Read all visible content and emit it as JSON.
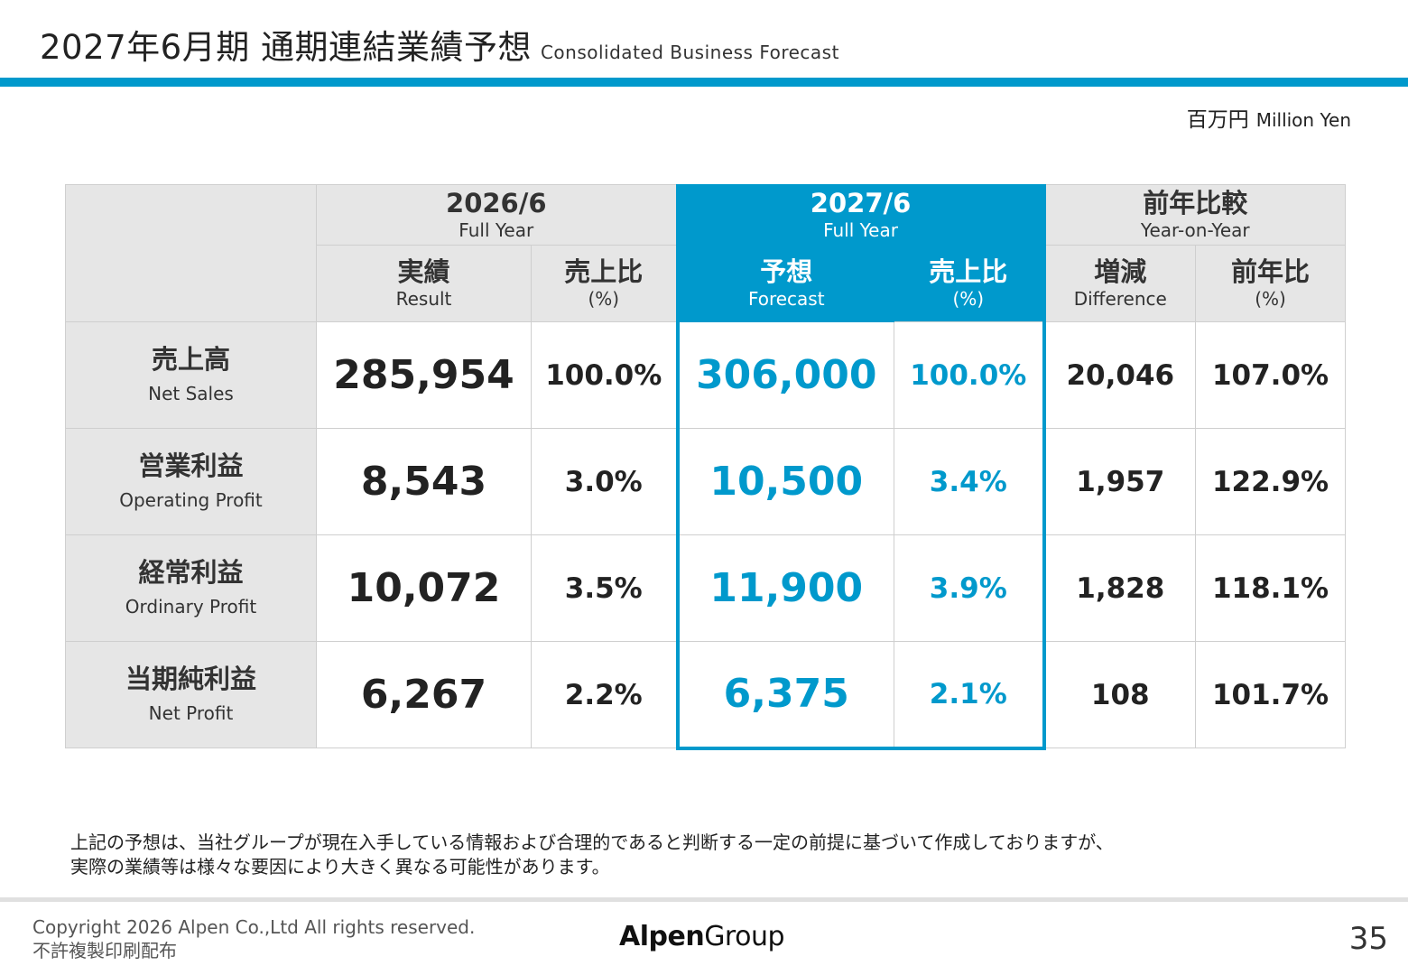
{
  "title": {
    "main": "2027年6月期 通期連結業績予想",
    "sub": "Consolidated Business Forecast"
  },
  "unit": {
    "jp": "百万円",
    "en": "Million Yen"
  },
  "table": {
    "groups": [
      {
        "title": "2026/6",
        "sub": "Full Year"
      },
      {
        "title": "2027/6",
        "sub": "Full Year"
      },
      {
        "title": "前年比較",
        "sub": "Year-on-Year"
      }
    ],
    "columns": [
      {
        "title": "実績",
        "sub": "Result"
      },
      {
        "title": "売上比",
        "sub": "(%)"
      },
      {
        "title": "予想",
        "sub": "Forecast"
      },
      {
        "title": "売上比",
        "sub": "(%)"
      },
      {
        "title": "増減",
        "sub": "Difference"
      },
      {
        "title": "前年比",
        "sub": "(%)"
      }
    ],
    "rows": [
      {
        "jp": "売上高",
        "en": "Net Sales",
        "values": [
          "285,954",
          "100.0%",
          "306,000",
          "100.0%",
          "20,046",
          "107.0%"
        ]
      },
      {
        "jp": "営業利益",
        "en": "Operating Profit",
        "values": [
          "8,543",
          "3.0%",
          "10,500",
          "3.4%",
          "1,957",
          "122.9%"
        ]
      },
      {
        "jp": "経常利益",
        "en": "Ordinary Profit",
        "values": [
          "10,072",
          "3.5%",
          "11,900",
          "3.9%",
          "1,828",
          "118.1%"
        ]
      },
      {
        "jp": "当期純利益",
        "en": "Net Profit",
        "values": [
          "6,267",
          "2.2%",
          "6,375",
          "2.1%",
          "108",
          "101.7%"
        ]
      }
    ]
  },
  "note": {
    "line1": "上記の予想は、当社グループが現在入手している情報および合理的であると判断する一定の前提に基づいて作成しておりますが、",
    "line2": "実際の業績等は様々な要因により大きく異なる可能性があります。"
  },
  "footer": {
    "copyright": "Copyright 2026 Alpen Co.,Ltd All rights reserved.",
    "notice": "不許複製印刷配布",
    "logo_bold": "Alpen",
    "logo_light": "Group",
    "page": "35"
  },
  "colors": {
    "accent": "#0099cc",
    "header_bg": "#e6e6e6"
  }
}
